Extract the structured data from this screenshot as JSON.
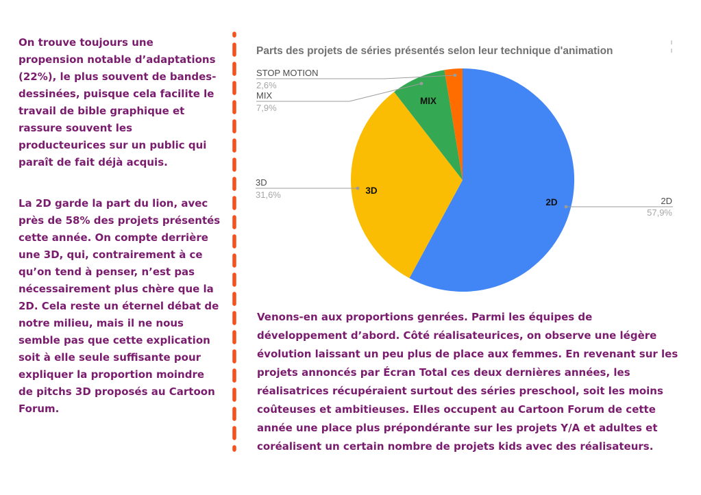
{
  "left_column": {
    "paragraph1": "On trouve toujours une\npropension notable d’adaptations\n(22%), le plus souvent de bandes-\ndessinées, puisque cela facilite le\ntravail de bible graphique et\nrassure souvent les\nproducteurices sur un public qui\nparaît de fait déjà acquis.",
    "paragraph2": "La 2D garde la part du lion, avec\nprès de 58% des projets présentés\ncette année. On compte derrière\nune 3D, qui, contrairement à ce\nqu’on tend à penser, n’est pas\nnécessairement plus chère que la\n2D. Cela reste un éternel débat de\nnotre milieu, mais il ne nous\nsemble pas que cette explication\nsoit à elle seule suffisante pour\nexpliquer la proportion moindre\nde pitchs 3D proposés au Cartoon\nForum."
  },
  "chart": {
    "title": "Parts des projets de séries présentés selon leur technique d'animation"
  },
  "chart_data": {
    "type": "pie",
    "title": "Parts des projets de séries présentés selon leur technique d'animation",
    "legend_position": "outside-callouts",
    "start_angle": 0,
    "direction": "clockwise",
    "unit": "%",
    "slices": [
      {
        "label": "2D",
        "value": 57.9,
        "percent_text": "57,9%",
        "color": "#4285F4"
      },
      {
        "label": "3D",
        "value": 31.6,
        "percent_text": "31,6%",
        "color": "#FBBC04"
      },
      {
        "label": "MIX",
        "value": 7.9,
        "percent_text": "7,9%",
        "color": "#34A853"
      },
      {
        "label": "STOP MOTION",
        "value": 2.6,
        "percent_text": "2,6%",
        "color": "#FF6D01"
      }
    ]
  },
  "bottom_paragraph": "Venons-en aux proportions genrées. Parmi les équipes de\ndéveloppement d’abord. Côté réalisateurices, on observe une légère\névolution laissant un peu plus de place aux femmes. En revenant sur les\nprojets annoncés par Écran Total ces deux dernières années, les\nréalisatrices récupéraient surtout des séries preschool, soit les moins\ncoûteuses et ambitieuses. Elles occupent au Cartoon Forum de cette\nannée une place plus prépondérante sur les projets Y/A et adultes et\ncoréalisent un certain nombre de projets kids avec des réalisateurs.",
  "colors": {
    "text_purple": "#7a1c6e",
    "divider_orange": "#F4511E",
    "chart_title_gray": "#717171",
    "callout_name_gray": "#4b4b4b",
    "callout_percent_gray": "#a6a6a6",
    "leader_line_gray": "#9b9b9b"
  }
}
